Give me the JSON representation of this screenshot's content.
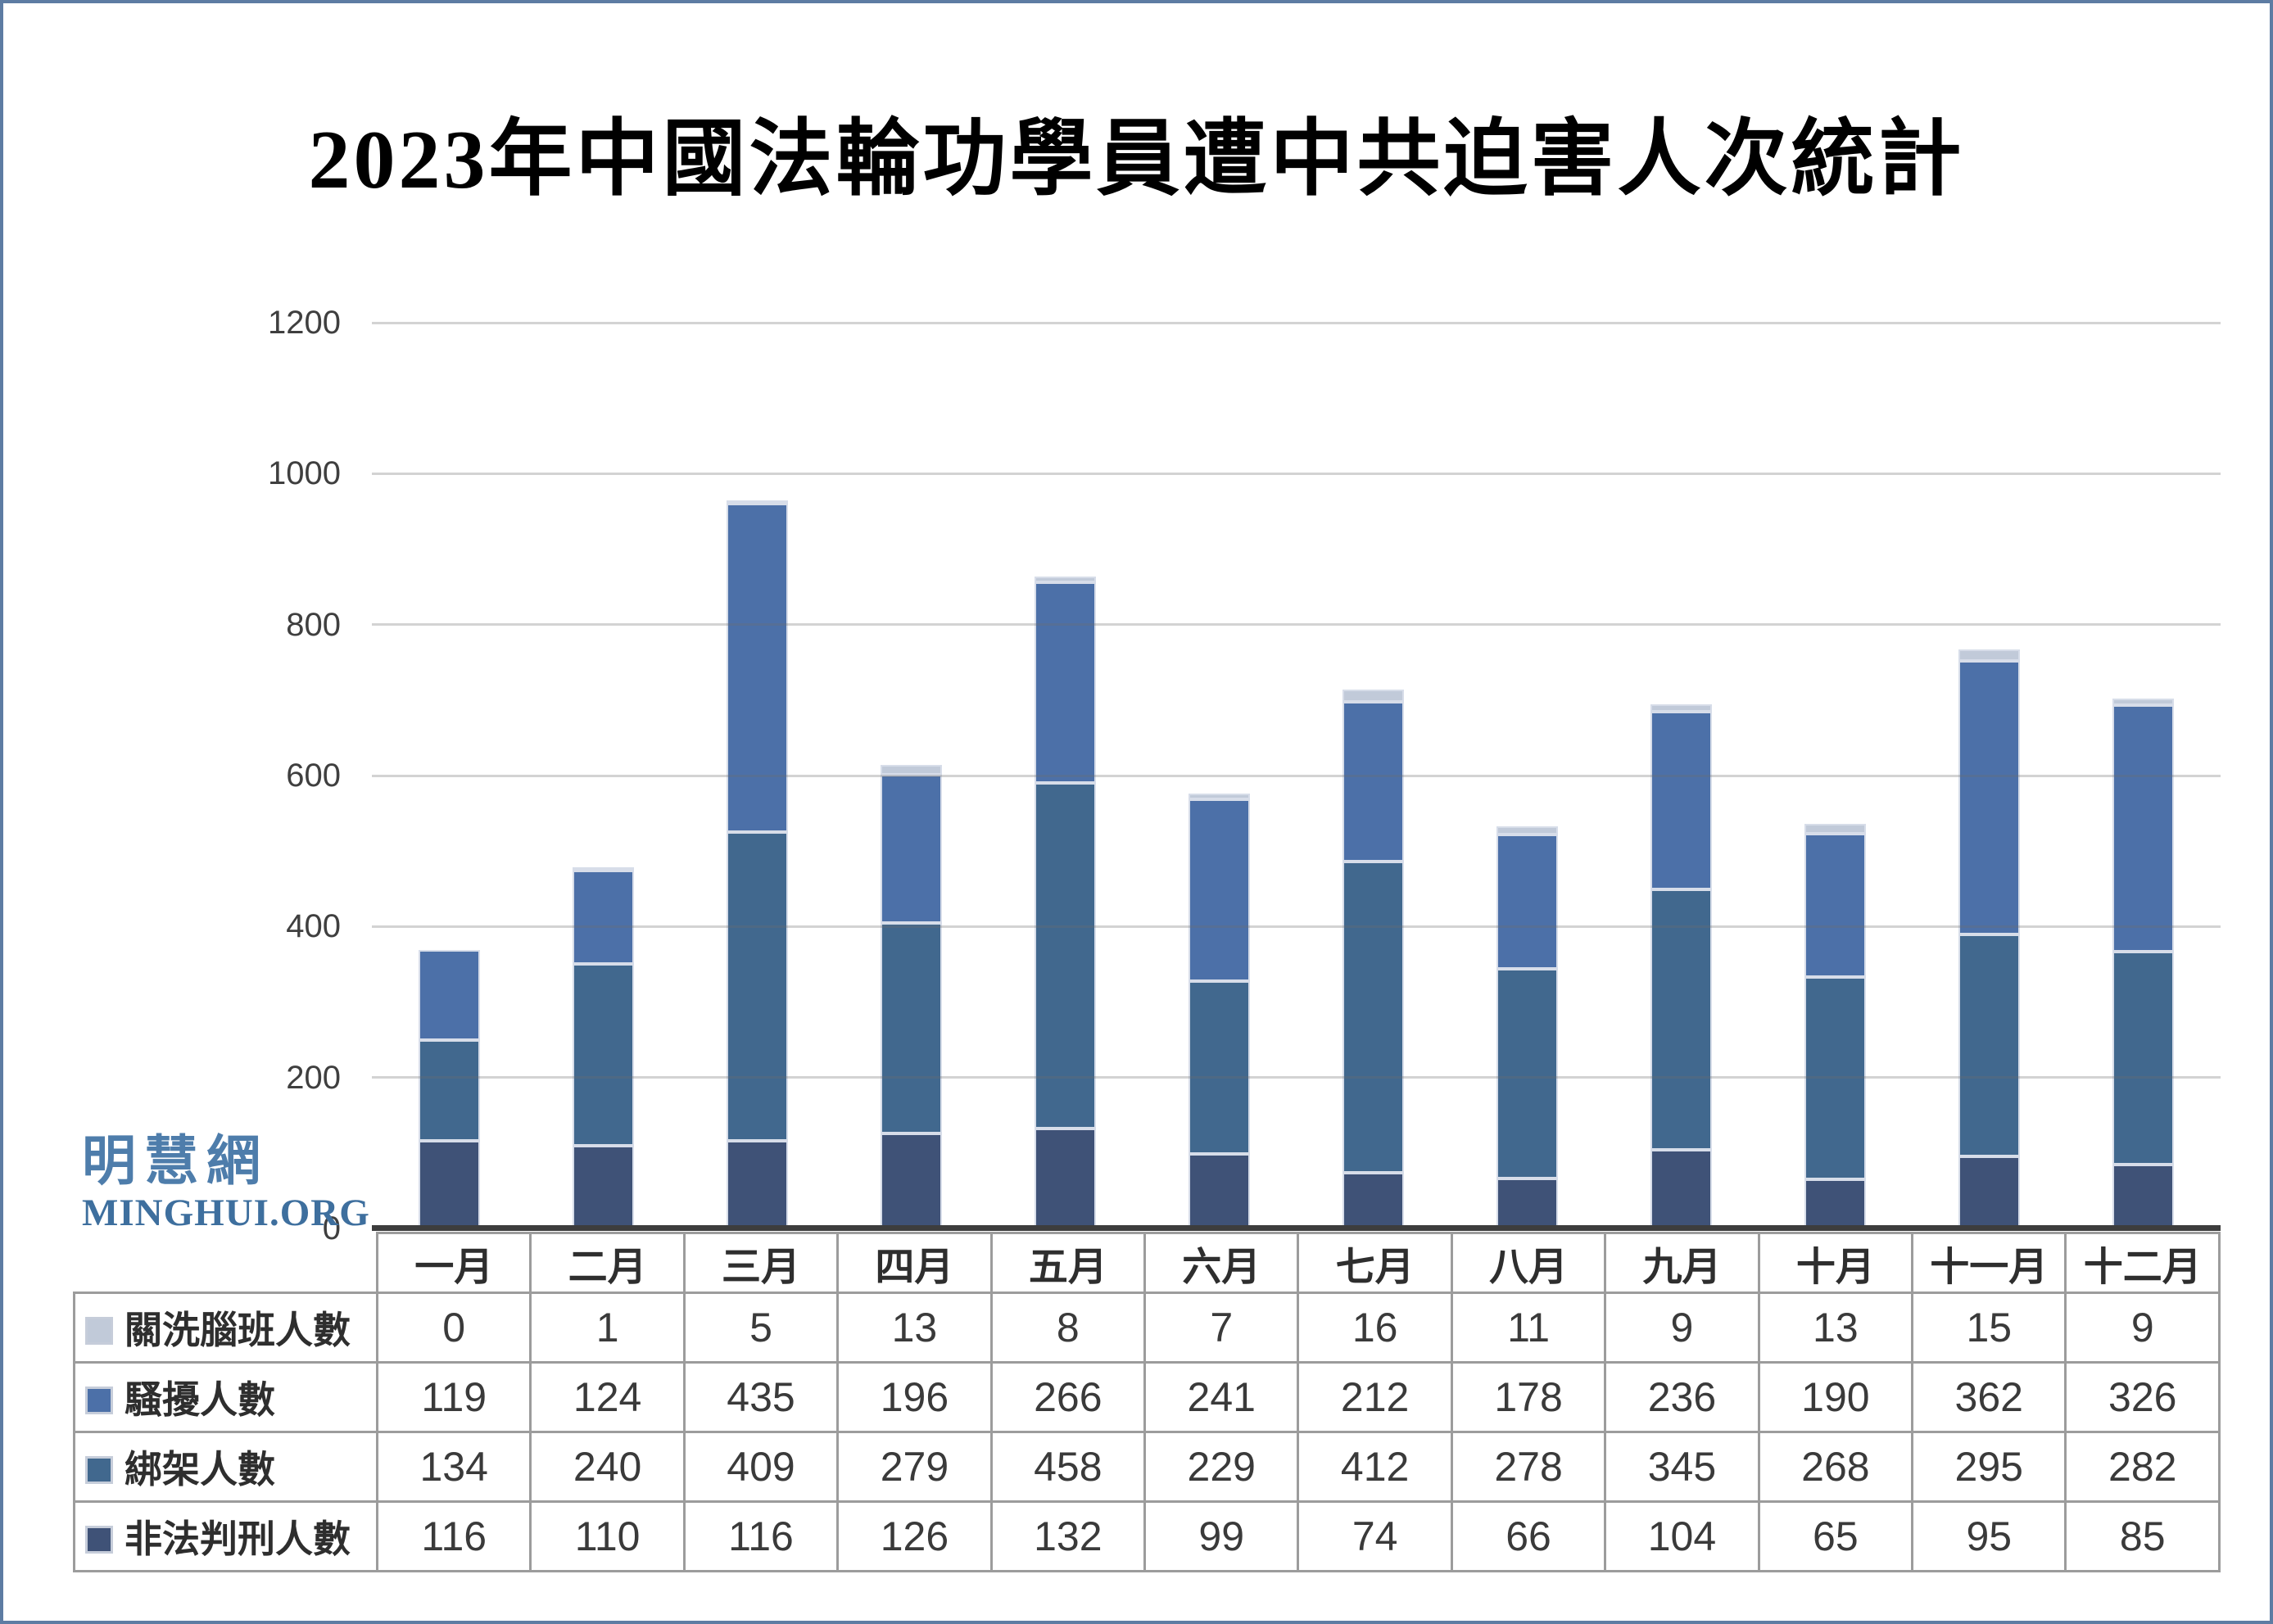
{
  "logo": {
    "cn": "明慧網",
    "en": "MINGHUI.ORG"
  },
  "y_axis": {
    "ticks": [
      "1200",
      "1000",
      "800",
      "600",
      "400",
      "200",
      "0"
    ]
  },
  "chart_data": {
    "type": "bar",
    "stacked": true,
    "title": "2023年中國法輪功學員遭中共迫害人次統計",
    "categories": [
      "一月",
      "二月",
      "三月",
      "四月",
      "五月",
      "六月",
      "七月",
      "八月",
      "九月",
      "十月",
      "十一月",
      "十二月"
    ],
    "series": [
      {
        "name": "關洗腦班人數",
        "color": "#c1cad9",
        "values": [
          0,
          1,
          5,
          13,
          8,
          7,
          16,
          11,
          9,
          13,
          15,
          9
        ]
      },
      {
        "name": "騷擾人數",
        "color": "#4c70a8",
        "values": [
          119,
          124,
          435,
          196,
          266,
          241,
          212,
          178,
          236,
          190,
          362,
          326
        ]
      },
      {
        "name": "綁架人數",
        "color": "#41688e",
        "values": [
          134,
          240,
          409,
          279,
          458,
          229,
          412,
          278,
          345,
          268,
          295,
          282
        ]
      },
      {
        "name": "非法判刑人數",
        "color": "#3f5277",
        "values": [
          116,
          110,
          116,
          126,
          132,
          99,
          74,
          66,
          104,
          65,
          95,
          85
        ]
      }
    ],
    "ylim": [
      0,
      1200
    ],
    "grid": true,
    "legend_position": "table-left-column"
  },
  "colors": {
    "frame_border": "#5d7ca3",
    "axis_line": "#3d3d3d",
    "gridline": "rgba(110,110,110,0.30)",
    "table_border": "#9c9c9c",
    "logo_blue": "#4e7dab"
  }
}
